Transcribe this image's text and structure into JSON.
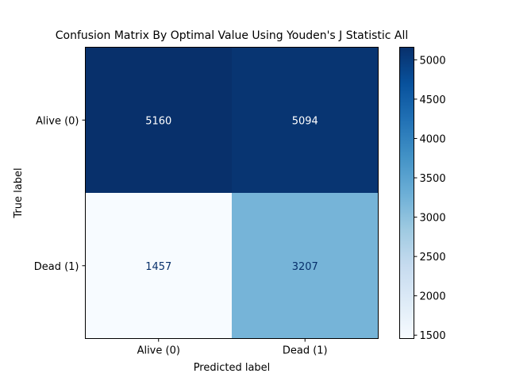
{
  "chart_data": {
    "type": "heatmap",
    "title": "Confusion Matrix By Optimal Value Using Youden's J Statistic All",
    "xlabel": "Predicted label",
    "ylabel": "True label",
    "x_categories": [
      "Alive (0)",
      "Dead (1)"
    ],
    "y_categories": [
      "Alive (0)",
      "Dead (1)"
    ],
    "values": [
      [
        5160,
        5094
      ],
      [
        1457,
        3207
      ]
    ],
    "colormap": "Blues",
    "colorbar": {
      "vmin": 1457,
      "vmax": 5160,
      "ticks": [
        1500,
        2000,
        2500,
        3000,
        3500,
        4000,
        4500,
        5000
      ]
    },
    "grid": false
  }
}
